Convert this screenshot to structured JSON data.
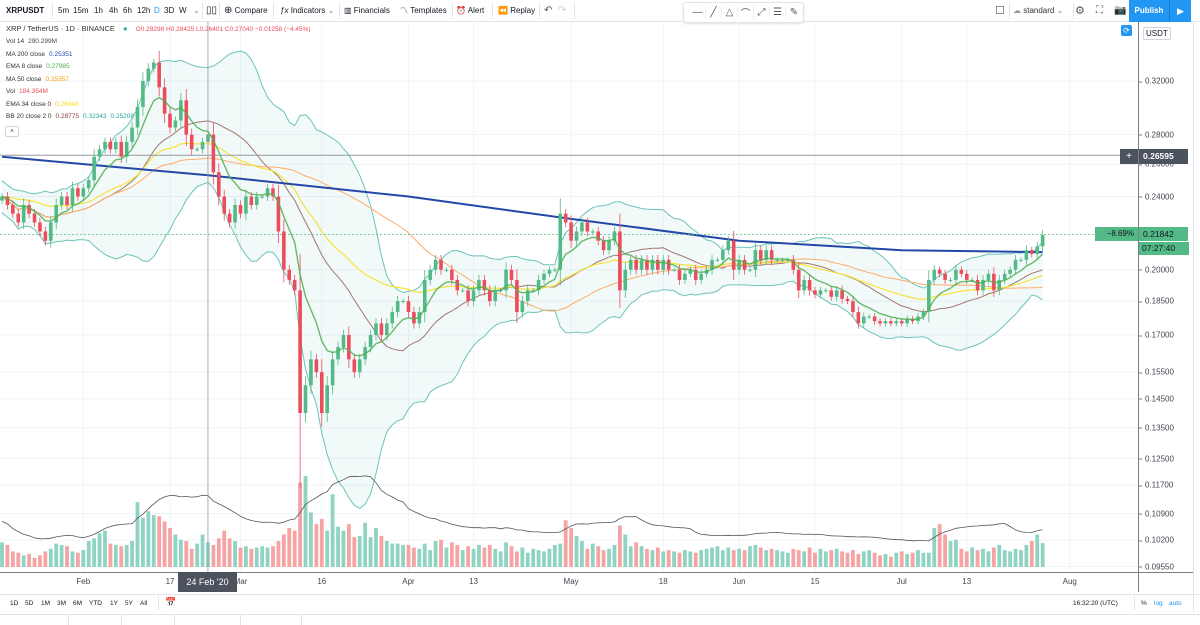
{
  "toolbar": {
    "symbol": "XRPUSDT",
    "intervals": [
      "5m",
      "15m",
      "1h",
      "4h",
      "6h",
      "12h",
      "D",
      "3D",
      "W"
    ],
    "active_interval": "D",
    "compare": "Compare",
    "indicators": "Indicators",
    "financials": "Financials",
    "templates": "Templates",
    "alert": "Alert",
    "replay": "Replay",
    "layout_name": "standard",
    "publish": "Publish",
    "accent": "#2196f3"
  },
  "legend": {
    "title": "XRP / TetherUS · 1D · BINANCE",
    "ohlc": "O0.28298 H0.28425 L0.26401 C0.27040 −0.01258 (−4.45%)",
    "indicators": [
      {
        "name": "Vol 14",
        "value": "290.299M",
        "color": "#434651"
      },
      {
        "name": "MA 200 close",
        "value": "0.25351",
        "color": "#2448a8"
      },
      {
        "name": "EMA 8 close",
        "value": "0.27985",
        "color": "#4caf50"
      },
      {
        "name": "MA 50 close",
        "value": "0.25357",
        "color": "#ff9800"
      },
      {
        "name": "Vol",
        "value": "184.354M",
        "color": "#eb4d5c"
      },
      {
        "name": "EMA 34 close 0",
        "value": "0.26943",
        "color": "#f5d90a"
      },
      {
        "name": "BB 20 close 2 0",
        "value": "0.28775",
        "value2": "0.32343",
        "value3": "0.25208",
        "color": "#8b3a3a",
        "color2": "#26a69a"
      }
    ]
  },
  "price_axis": {
    "currency": "USDT",
    "ticks": [
      "0.32000",
      "0.28000",
      "0.26000",
      "0.24000",
      "0.20000",
      "0.18500",
      "0.17000",
      "0.15500",
      "0.14500",
      "0.13500",
      "0.12500",
      "0.11700",
      "0.10900",
      "0.10200",
      "0.09550"
    ],
    "crosshair_price": "0.26595",
    "last_price": "0.21842",
    "last_change": "−8.69%",
    "countdown": "07:27:40",
    "scale": "log"
  },
  "time_axis": {
    "labels": [
      {
        "date": "2020-02-01",
        "text": "Feb"
      },
      {
        "date": "2020-02-17",
        "text": "17"
      },
      {
        "date": "2020-03-01",
        "text": "Mar"
      },
      {
        "date": "2020-03-16",
        "text": "16"
      },
      {
        "date": "2020-04-01",
        "text": "Apr"
      },
      {
        "date": "2020-04-13",
        "text": "13"
      },
      {
        "date": "2020-05-01",
        "text": "May"
      },
      {
        "date": "2020-05-18",
        "text": "18"
      },
      {
        "date": "2020-06-01",
        "text": "Jun"
      },
      {
        "date": "2020-06-15",
        "text": "15"
      },
      {
        "date": "2020-07-01",
        "text": "Jul"
      },
      {
        "date": "2020-07-13",
        "text": "13"
      },
      {
        "date": "2020-08-01",
        "text": "Aug"
      }
    ],
    "crosshair_date": "2020-02-24",
    "crosshair_label": "24 Feb '20"
  },
  "bottom": {
    "ranges": [
      "1D",
      "5D",
      "1M",
      "3M",
      "6M",
      "YTD",
      "1Y",
      "5Y",
      "All"
    ],
    "clock": "16:32:20 (UTC)",
    "percent": "%",
    "log": "log",
    "auto": "auto"
  },
  "chart_data": {
    "type": "candlestick",
    "colors": {
      "up": "#53b987",
      "down": "#eb4d5c",
      "vol_up": "#8fd3c3",
      "vol_down": "#f5a3a3"
    },
    "months": [
      {
        "month": "2020-01",
        "first_day": 17,
        "close": [
          0.24,
          0.235,
          0.23,
          0.225,
          0.235,
          0.23,
          0.225,
          0.22,
          0.215,
          0.225,
          0.235,
          0.24,
          0.235,
          0.245,
          0.24
        ],
        "volume_m": [
          190,
          170,
          120,
          110,
          90,
          100,
          70,
          90,
          120,
          140,
          180,
          170,
          160,
          120,
          110
        ]
      },
      {
        "month": "2020-02",
        "first_day": 1,
        "close": [
          0.245,
          0.25,
          0.265,
          0.27,
          0.275,
          0.27,
          0.275,
          0.265,
          0.275,
          0.285,
          0.3,
          0.32,
          0.33,
          0.335,
          0.315,
          0.295,
          0.285,
          0.29,
          0.305,
          0.28,
          0.27,
          0.27,
          0.275,
          0.28,
          0.255,
          0.24,
          0.23,
          0.225,
          0.235
        ],
        "volume_m": [
          130,
          200,
          220,
          260,
          280,
          180,
          170,
          160,
          170,
          200,
          500,
          380,
          430,
          400,
          390,
          350,
          300,
          250,
          210,
          200,
          140,
          180,
          250,
          190,
          170,
          220,
          280,
          220,
          200
        ]
      },
      {
        "month": "2020-03",
        "first_day": 1,
        "close": [
          0.23,
          0.24,
          0.235,
          0.24,
          0.24,
          0.245,
          0.24,
          0.22,
          0.2,
          0.195,
          0.19,
          0.14,
          0.15,
          0.16,
          0.155,
          0.14,
          0.15,
          0.16,
          0.165,
          0.17,
          0.16,
          0.155,
          0.16,
          0.165,
          0.17,
          0.175,
          0.17,
          0.175,
          0.18,
          0.185,
          0.185
        ],
        "volume_m": [
          150,
          160,
          140,
          150,
          160,
          150,
          160,
          200,
          250,
          300,
          280,
          650,
          700,
          420,
          330,
          370,
          280,
          560,
          310,
          280,
          330,
          230,
          240,
          340,
          230,
          300,
          240,
          200,
          180,
          180,
          170
        ]
      },
      {
        "month": "2020-04",
        "first_day": 1,
        "close": [
          0.18,
          0.175,
          0.18,
          0.195,
          0.2,
          0.205,
          0.2,
          0.2,
          0.195,
          0.19,
          0.19,
          0.185,
          0.19,
          0.195,
          0.19,
          0.185,
          0.19,
          0.19,
          0.2,
          0.195,
          0.18,
          0.185,
          0.19,
          0.19,
          0.195,
          0.198,
          0.2,
          0.2,
          0.23,
          0.225
        ],
        "volume_m": [
          170,
          150,
          140,
          180,
          130,
          200,
          210,
          150,
          190,
          170,
          130,
          160,
          140,
          170,
          150,
          170,
          140,
          120,
          190,
          160,
          120,
          150,
          110,
          140,
          130,
          120,
          140,
          170,
          180,
          360
        ]
      },
      {
        "month": "2020-05",
        "first_day": 1,
        "close": [
          0.215,
          0.22,
          0.225,
          0.22,
          0.22,
          0.215,
          0.21,
          0.215,
          0.22,
          0.19,
          0.2,
          0.205,
          0.2,
          0.205,
          0.2,
          0.205,
          0.2,
          0.205,
          0.2,
          0.2,
          0.195,
          0.198,
          0.2,
          0.195,
          0.198,
          0.2,
          0.205,
          0.205,
          0.21,
          0.215,
          0.2
        ],
        "volume_m": [
          300,
          240,
          200,
          140,
          180,
          160,
          130,
          140,
          170,
          320,
          250,
          160,
          190,
          160,
          140,
          130,
          150,
          120,
          130,
          120,
          110,
          130,
          120,
          110,
          130,
          140,
          150,
          160,
          130,
          150,
          130
        ]
      },
      {
        "month": "2020-06",
        "first_day": 1,
        "close": [
          0.205,
          0.2,
          0.2,
          0.21,
          0.205,
          0.21,
          0.205,
          0.205,
          0.205,
          0.205,
          0.2,
          0.19,
          0.195,
          0.19,
          0.188,
          0.19,
          0.19,
          0.187,
          0.19,
          0.186,
          0.185,
          0.18,
          0.175,
          0.178,
          0.178,
          0.176,
          0.175,
          0.176,
          0.175,
          0.176
        ],
        "volume_m": [
          140,
          130,
          160,
          170,
          150,
          130,
          140,
          130,
          120,
          110,
          140,
          130,
          120,
          150,
          110,
          140,
          120,
          130,
          140,
          120,
          110,
          130,
          100,
          120,
          130,
          110,
          90,
          100,
          80,
          110
        ]
      },
      {
        "month": "2020-07",
        "first_day": 1,
        "close": [
          0.175,
          0.177,
          0.176,
          0.178,
          0.18,
          0.195,
          0.2,
          0.198,
          0.195,
          0.195,
          0.2,
          0.198,
          0.195,
          0.195,
          0.19,
          0.195,
          0.198,
          0.19,
          0.195,
          0.198,
          0.2,
          0.205,
          0.205,
          0.21,
          0.208,
          0.212,
          0.218
        ],
        "volume_m": [
          120,
          100,
          110,
          130,
          110,
          110,
          300,
          330,
          250,
          200,
          210,
          140,
          120,
          150,
          130,
          140,
          120,
          150,
          170,
          130,
          120,
          140,
          130,
          170,
          200,
          250,
          184
        ]
      }
    ],
    "extremes": [
      {
        "date": "2020-02-15",
        "high": 0.345
      },
      {
        "date": "2020-03-12",
        "low": 0.116
      },
      {
        "date": "2020-05-10",
        "low": 0.182
      }
    ],
    "ma200": [
      {
        "date": "2020-01-17",
        "value": 0.265
      },
      {
        "date": "2020-02-24",
        "value": 0.253
      },
      {
        "date": "2020-04-01",
        "value": 0.24
      },
      {
        "date": "2020-05-01",
        "value": 0.227
      },
      {
        "date": "2020-06-01",
        "value": 0.215
      },
      {
        "date": "2020-07-01",
        "value": 0.21
      },
      {
        "date": "2020-07-27",
        "value": 0.209
      }
    ],
    "indicator_periods": {
      "ema_fast": 8,
      "ema_slow": 34,
      "ma": 50,
      "bb": 20,
      "bb_mult": 2,
      "vol_ma": 14
    }
  }
}
